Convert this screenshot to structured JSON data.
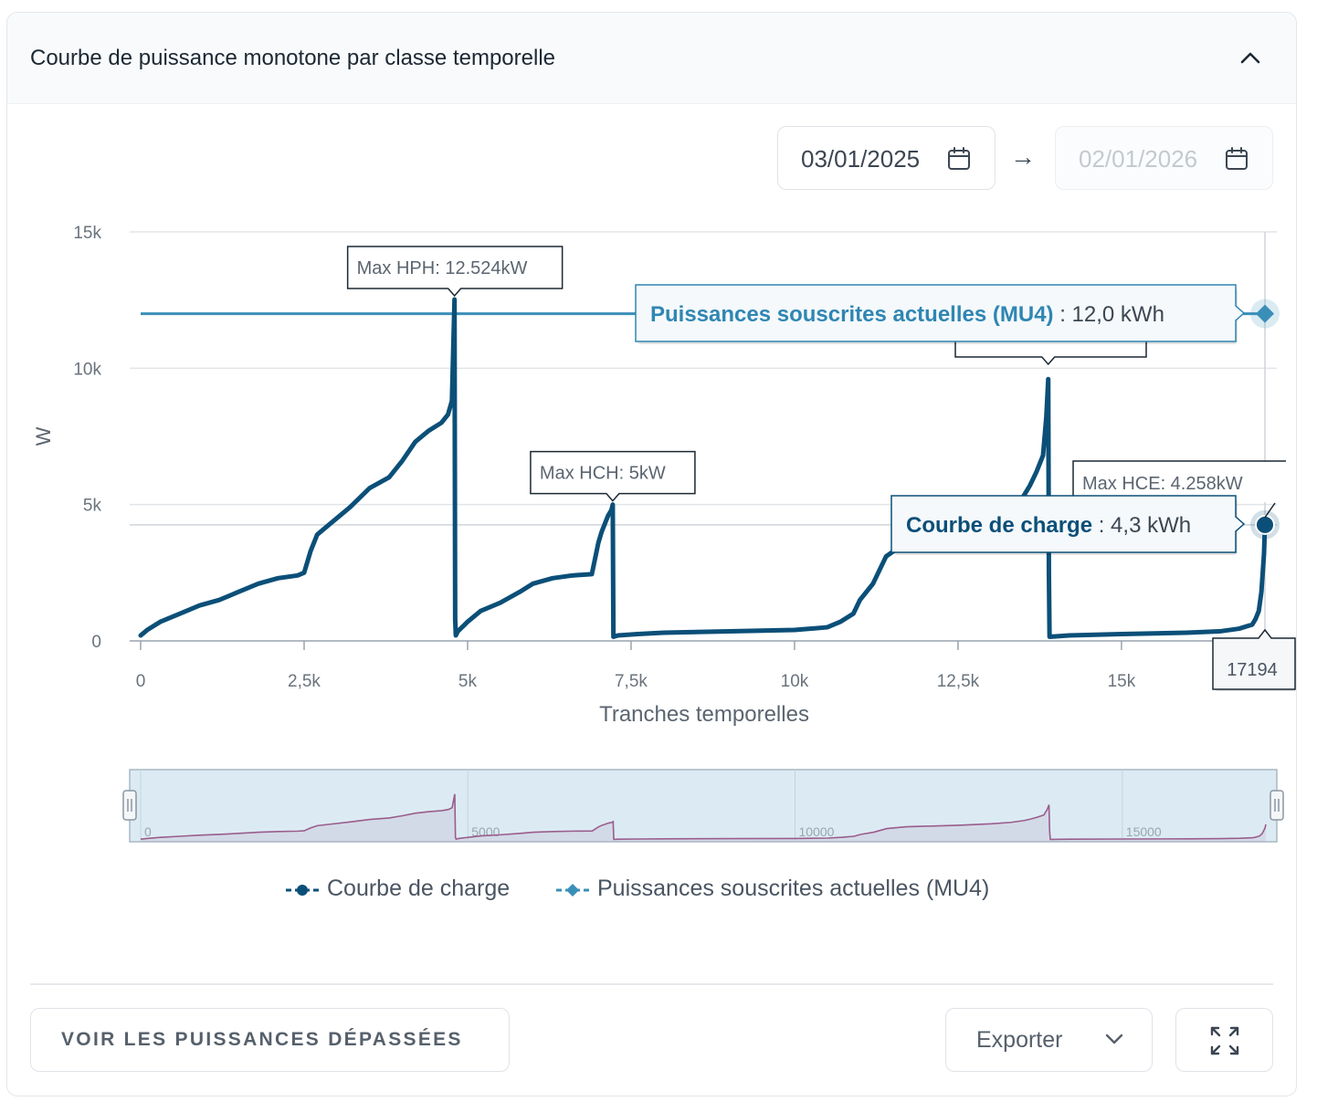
{
  "card": {
    "title": "Courbe de puissance monotone par classe temporelle"
  },
  "date_range": {
    "start": "03/01/2025",
    "end": "02/01/2026",
    "separator": "→"
  },
  "chart_data": {
    "type": "line",
    "xlabel": "Tranches temporelles",
    "ylabel": "W",
    "xlim": [
      0,
      17194
    ],
    "ylim": [
      0,
      15000
    ],
    "x_ticks": [
      0,
      2500,
      5000,
      7500,
      10000,
      12500,
      15000
    ],
    "x_tick_labels": [
      "0",
      "2,5k",
      "5k",
      "7,5k",
      "10k",
      "12,5k",
      "15k"
    ],
    "y_ticks": [
      0,
      5000,
      10000,
      15000
    ],
    "y_tick_labels": [
      "0",
      "5k",
      "10k",
      "15k"
    ],
    "series": [
      {
        "name": "Courbe de charge",
        "color": "#0b4f78",
        "x": [
          0,
          100,
          300,
          600,
          900,
          1200,
          1500,
          1800,
          2100,
          2400,
          2500,
          2600,
          2700,
          2900,
          3200,
          3500,
          3800,
          4000,
          4200,
          4400,
          4600,
          4700,
          4760,
          4800,
          4810,
          4820,
          4850,
          5000,
          5200,
          5500,
          5800,
          6000,
          6300,
          6600,
          6900,
          7000,
          7050,
          7100,
          7150,
          7200,
          7220,
          7230,
          7300,
          7600,
          8000,
          9000,
          10000,
          10500,
          10700,
          10900,
          11000,
          11200,
          11400,
          11700,
          12000,
          12500,
          13000,
          13300,
          13500,
          13600,
          13700,
          13800,
          13850,
          13880,
          13890,
          13900,
          14200,
          15000,
          16000,
          16500,
          16800,
          17000,
          17050,
          17100,
          17140,
          17180,
          17194
        ],
        "y": [
          200,
          400,
          700,
          1000,
          1300,
          1500,
          1800,
          2100,
          2300,
          2400,
          2500,
          3300,
          3900,
          4300,
          4900,
          5600,
          6000,
          6600,
          7300,
          7700,
          8000,
          8300,
          8800,
          12524,
          800,
          200,
          350,
          700,
          1100,
          1400,
          1800,
          2100,
          2300,
          2400,
          2450,
          3600,
          4000,
          4300,
          4600,
          4800,
          5000,
          150,
          200,
          250,
          300,
          350,
          400,
          500,
          700,
          1000,
          1500,
          2100,
          3100,
          3600,
          3750,
          4000,
          4400,
          4800,
          5300,
          5700,
          6200,
          6800,
          8200,
          9600,
          2500,
          150,
          200,
          250,
          300,
          350,
          450,
          600,
          800,
          1100,
          1800,
          3200,
          4258
        ]
      },
      {
        "name": "Puissances souscrites actuelles (MU4)",
        "color": "#3a8fb9",
        "x": [
          0,
          17194
        ],
        "y": [
          12000,
          12000
        ]
      }
    ],
    "annotations": [
      {
        "text": "Max HPH: 12.524kW",
        "x": 4800,
        "y": 12524
      },
      {
        "text": "Max HCH: 5kW",
        "x": 7220,
        "y": 5000
      },
      {
        "text": "Max HCE: 4.258kW",
        "x": 17194,
        "y": 4258
      }
    ],
    "hover": {
      "x_label": "17194",
      "tooltips": [
        {
          "series": "Puissances souscrites actuelles (MU4)",
          "value": "12,0 kWh"
        },
        {
          "series": "Courbe de charge",
          "value": "4,3 kWh"
        }
      ]
    },
    "navigator": {
      "tick_labels": [
        "0",
        "5000",
        "10000",
        "15000"
      ],
      "tick_values": [
        0,
        5000,
        10000,
        15000
      ]
    },
    "legend_position": "bottom"
  },
  "legend": {
    "items": [
      {
        "label": "Courbe de charge",
        "color": "#0b4f78"
      },
      {
        "label": "Puissances souscrites actuelles (MU4)",
        "color": "#3a8fb9"
      }
    ]
  },
  "footer": {
    "exceed_label": "VOIR LES PUISSANCES DÉPASSÉES",
    "export_label": "Exporter"
  }
}
